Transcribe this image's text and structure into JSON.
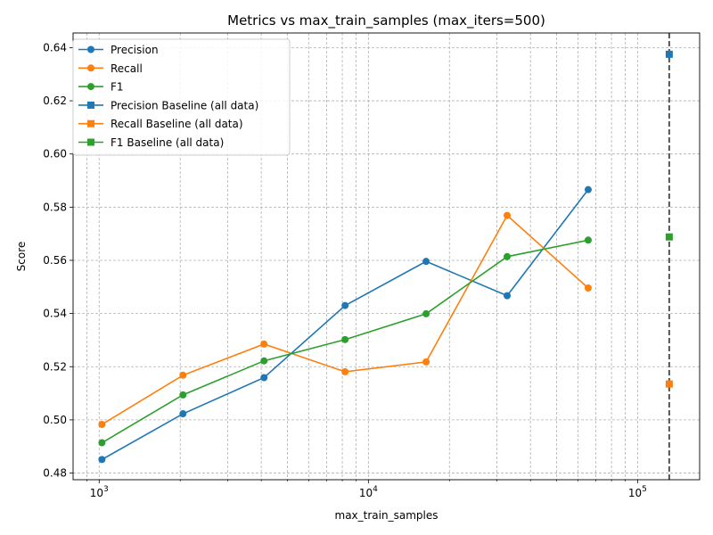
{
  "chart_data": {
    "type": "line",
    "title": "Metrics vs max_train_samples (max_iters=500)",
    "xlabel": "max_train_samples",
    "ylabel": "Score",
    "xscale": "log",
    "xlim": [
      800,
      170000
    ],
    "ylim": [
      0.4775,
      0.6455
    ],
    "grid": true,
    "legend_position": "top-left",
    "x_tick_labels": [
      {
        "value": 1000,
        "label": "10",
        "exponent": "3"
      },
      {
        "value": 10000,
        "label": "10",
        "exponent": "4"
      },
      {
        "value": 100000,
        "label": "10",
        "exponent": "5"
      }
    ],
    "y_ticks": [
      0.48,
      0.5,
      0.52,
      0.54,
      0.56,
      0.58,
      0.6,
      0.62,
      0.64
    ],
    "y_tick_labels": [
      "0.48",
      "0.50",
      "0.52",
      "0.54",
      "0.56",
      "0.58",
      "0.60",
      "0.62",
      "0.64"
    ],
    "x": [
      1024,
      2048,
      4096,
      8192,
      16384,
      32768,
      65536
    ],
    "series": [
      {
        "name": "Precision",
        "color": "#1f77b4",
        "marker": "circle",
        "values": [
          0.4851,
          0.5023,
          0.5159,
          0.543,
          0.5596,
          0.5467,
          0.5866
        ]
      },
      {
        "name": "Recall",
        "color": "#ff7f0e",
        "marker": "circle",
        "values": [
          0.4983,
          0.5168,
          0.5285,
          0.5181,
          0.5218,
          0.5769,
          0.5496
        ]
      },
      {
        "name": "F1",
        "color": "#2ca02c",
        "marker": "circle",
        "values": [
          0.4914,
          0.5094,
          0.5222,
          0.5302,
          0.5399,
          0.5614,
          0.5676
        ]
      }
    ],
    "baselines": {
      "x": 131072,
      "series": [
        {
          "name": "Precision Baseline (all data)",
          "color": "#1f77b4",
          "marker": "square",
          "value": 0.6375
        },
        {
          "name": "Recall Baseline (all data)",
          "color": "#ff7f0e",
          "marker": "square",
          "value": 0.5135
        },
        {
          "name": "F1 Baseline (all data)",
          "color": "#2ca02c",
          "marker": "square",
          "value": 0.5688
        }
      ]
    },
    "vertical_line": {
      "x": 131072,
      "color": "#555555",
      "style": "dashed"
    }
  }
}
